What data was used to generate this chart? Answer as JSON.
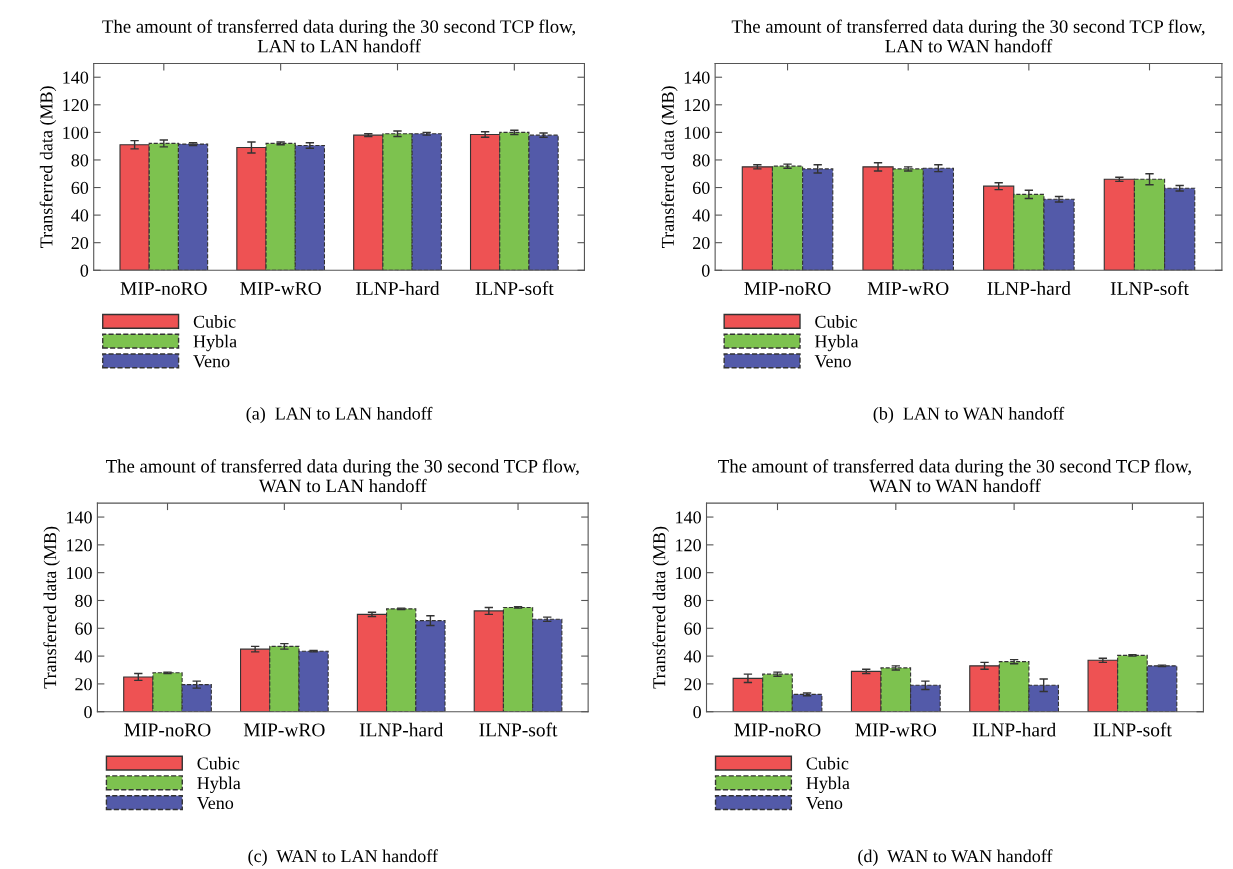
{
  "chart_data": [
    {
      "type": "bar",
      "title": "The amount of transferred data during the 30 second TCP flow,\nLAN to LAN handoff",
      "ylabel": "Transferred data (MB)",
      "categories": [
        "MIP-noRO",
        "MIP-wRO",
        "ILNP-hard",
        "ILNP-soft"
      ],
      "ylim": [
        0,
        150
      ],
      "yticks": [
        0,
        20,
        40,
        60,
        80,
        100,
        120,
        140
      ],
      "legend": "bottom",
      "annotations": [
        "(a)  LAN to LAN handoff"
      ],
      "series": [
        {
          "name": "Cubic",
          "color": "#ee5253",
          "values": [
            91,
            89,
            98,
            98.5
          ],
          "errors": [
            3,
            4,
            1,
            2
          ]
        },
        {
          "name": "Hybla",
          "color": "#7dc24f",
          "values": [
            92,
            92,
            99,
            100
          ],
          "errors": [
            2.5,
            1,
            2,
            1.5
          ]
        },
        {
          "name": "Veno",
          "color": "#535aa9",
          "values": [
            91.5,
            90.5,
            99,
            98
          ],
          "errors": [
            1,
            2,
            1,
            1.5
          ]
        }
      ]
    },
    {
      "type": "bar",
      "title": "The amount of transferred data during the 30 second TCP flow,\nLAN to WAN handoff",
      "ylabel": "Transferred data (MB)",
      "categories": [
        "MIP-noRO",
        "MIP-wRO",
        "ILNP-hard",
        "ILNP-soft"
      ],
      "ylim": [
        0,
        150
      ],
      "yticks": [
        0,
        20,
        40,
        60,
        80,
        100,
        120,
        140
      ],
      "legend": "bottom",
      "annotations": [
        "(b)  LAN to WAN handoff"
      ],
      "series": [
        {
          "name": "Cubic",
          "color": "#ee5253",
          "values": [
            75,
            75,
            61,
            66
          ],
          "errors": [
            1.5,
            3,
            2.5,
            1.5
          ]
        },
        {
          "name": "Hybla",
          "color": "#7dc24f",
          "values": [
            75.5,
            73.5,
            55,
            66
          ],
          "errors": [
            1.5,
            1.5,
            3,
            4
          ]
        },
        {
          "name": "Veno",
          "color": "#535aa9",
          "values": [
            73.5,
            74,
            51.5,
            59.5
          ],
          "errors": [
            3,
            2.5,
            2,
            2
          ]
        }
      ]
    },
    {
      "type": "bar",
      "title": "The amount of transferred data during the 30 second TCP flow,\nWAN to LAN handoff",
      "ylabel": "Transferred data (MB)",
      "categories": [
        "MIP-noRO",
        "MIP-wRO",
        "ILNP-hard",
        "ILNP-soft"
      ],
      "ylim": [
        0,
        150
      ],
      "yticks": [
        0,
        20,
        40,
        60,
        80,
        100,
        120,
        140
      ],
      "legend": "bottom",
      "annotations": [
        "(c)  WAN to LAN handoff"
      ],
      "series": [
        {
          "name": "Cubic",
          "color": "#ee5253",
          "values": [
            25,
            45,
            70,
            72.5
          ],
          "errors": [
            2.5,
            2,
            1.5,
            2.5
          ]
        },
        {
          "name": "Hybla",
          "color": "#7dc24f",
          "values": [
            28,
            47,
            74,
            75
          ],
          "errors": [
            0.5,
            2,
            0.5,
            0.5
          ]
        },
        {
          "name": "Veno",
          "color": "#535aa9",
          "values": [
            19.5,
            43.5,
            65.5,
            66.5
          ],
          "errors": [
            2.5,
            0.5,
            3.5,
            1.5
          ]
        }
      ]
    },
    {
      "type": "bar",
      "title": "The amount of transferred data during the 30 second TCP flow,\nWAN to WAN handoff",
      "ylabel": "Transferred data (MB)",
      "categories": [
        "MIP-noRO",
        "MIP-wRO",
        "ILNP-hard",
        "ILNP-soft"
      ],
      "ylim": [
        0,
        150
      ],
      "yticks": [
        0,
        20,
        40,
        60,
        80,
        100,
        120,
        140
      ],
      "legend": "bottom",
      "annotations": [
        "(d)  WAN to WAN handoff"
      ],
      "series": [
        {
          "name": "Cubic",
          "color": "#ee5253",
          "values": [
            24,
            29,
            33,
            37
          ],
          "errors": [
            3,
            1.5,
            2.5,
            1.5
          ]
        },
        {
          "name": "Hybla",
          "color": "#7dc24f",
          "values": [
            27,
            31.5,
            36,
            40.5
          ],
          "errors": [
            1.5,
            1.5,
            1.5,
            0.5
          ]
        },
        {
          "name": "Veno",
          "color": "#535aa9",
          "values": [
            12.5,
            19,
            19,
            33
          ],
          "errors": [
            1,
            3,
            4.5,
            0.5
          ]
        }
      ]
    }
  ]
}
